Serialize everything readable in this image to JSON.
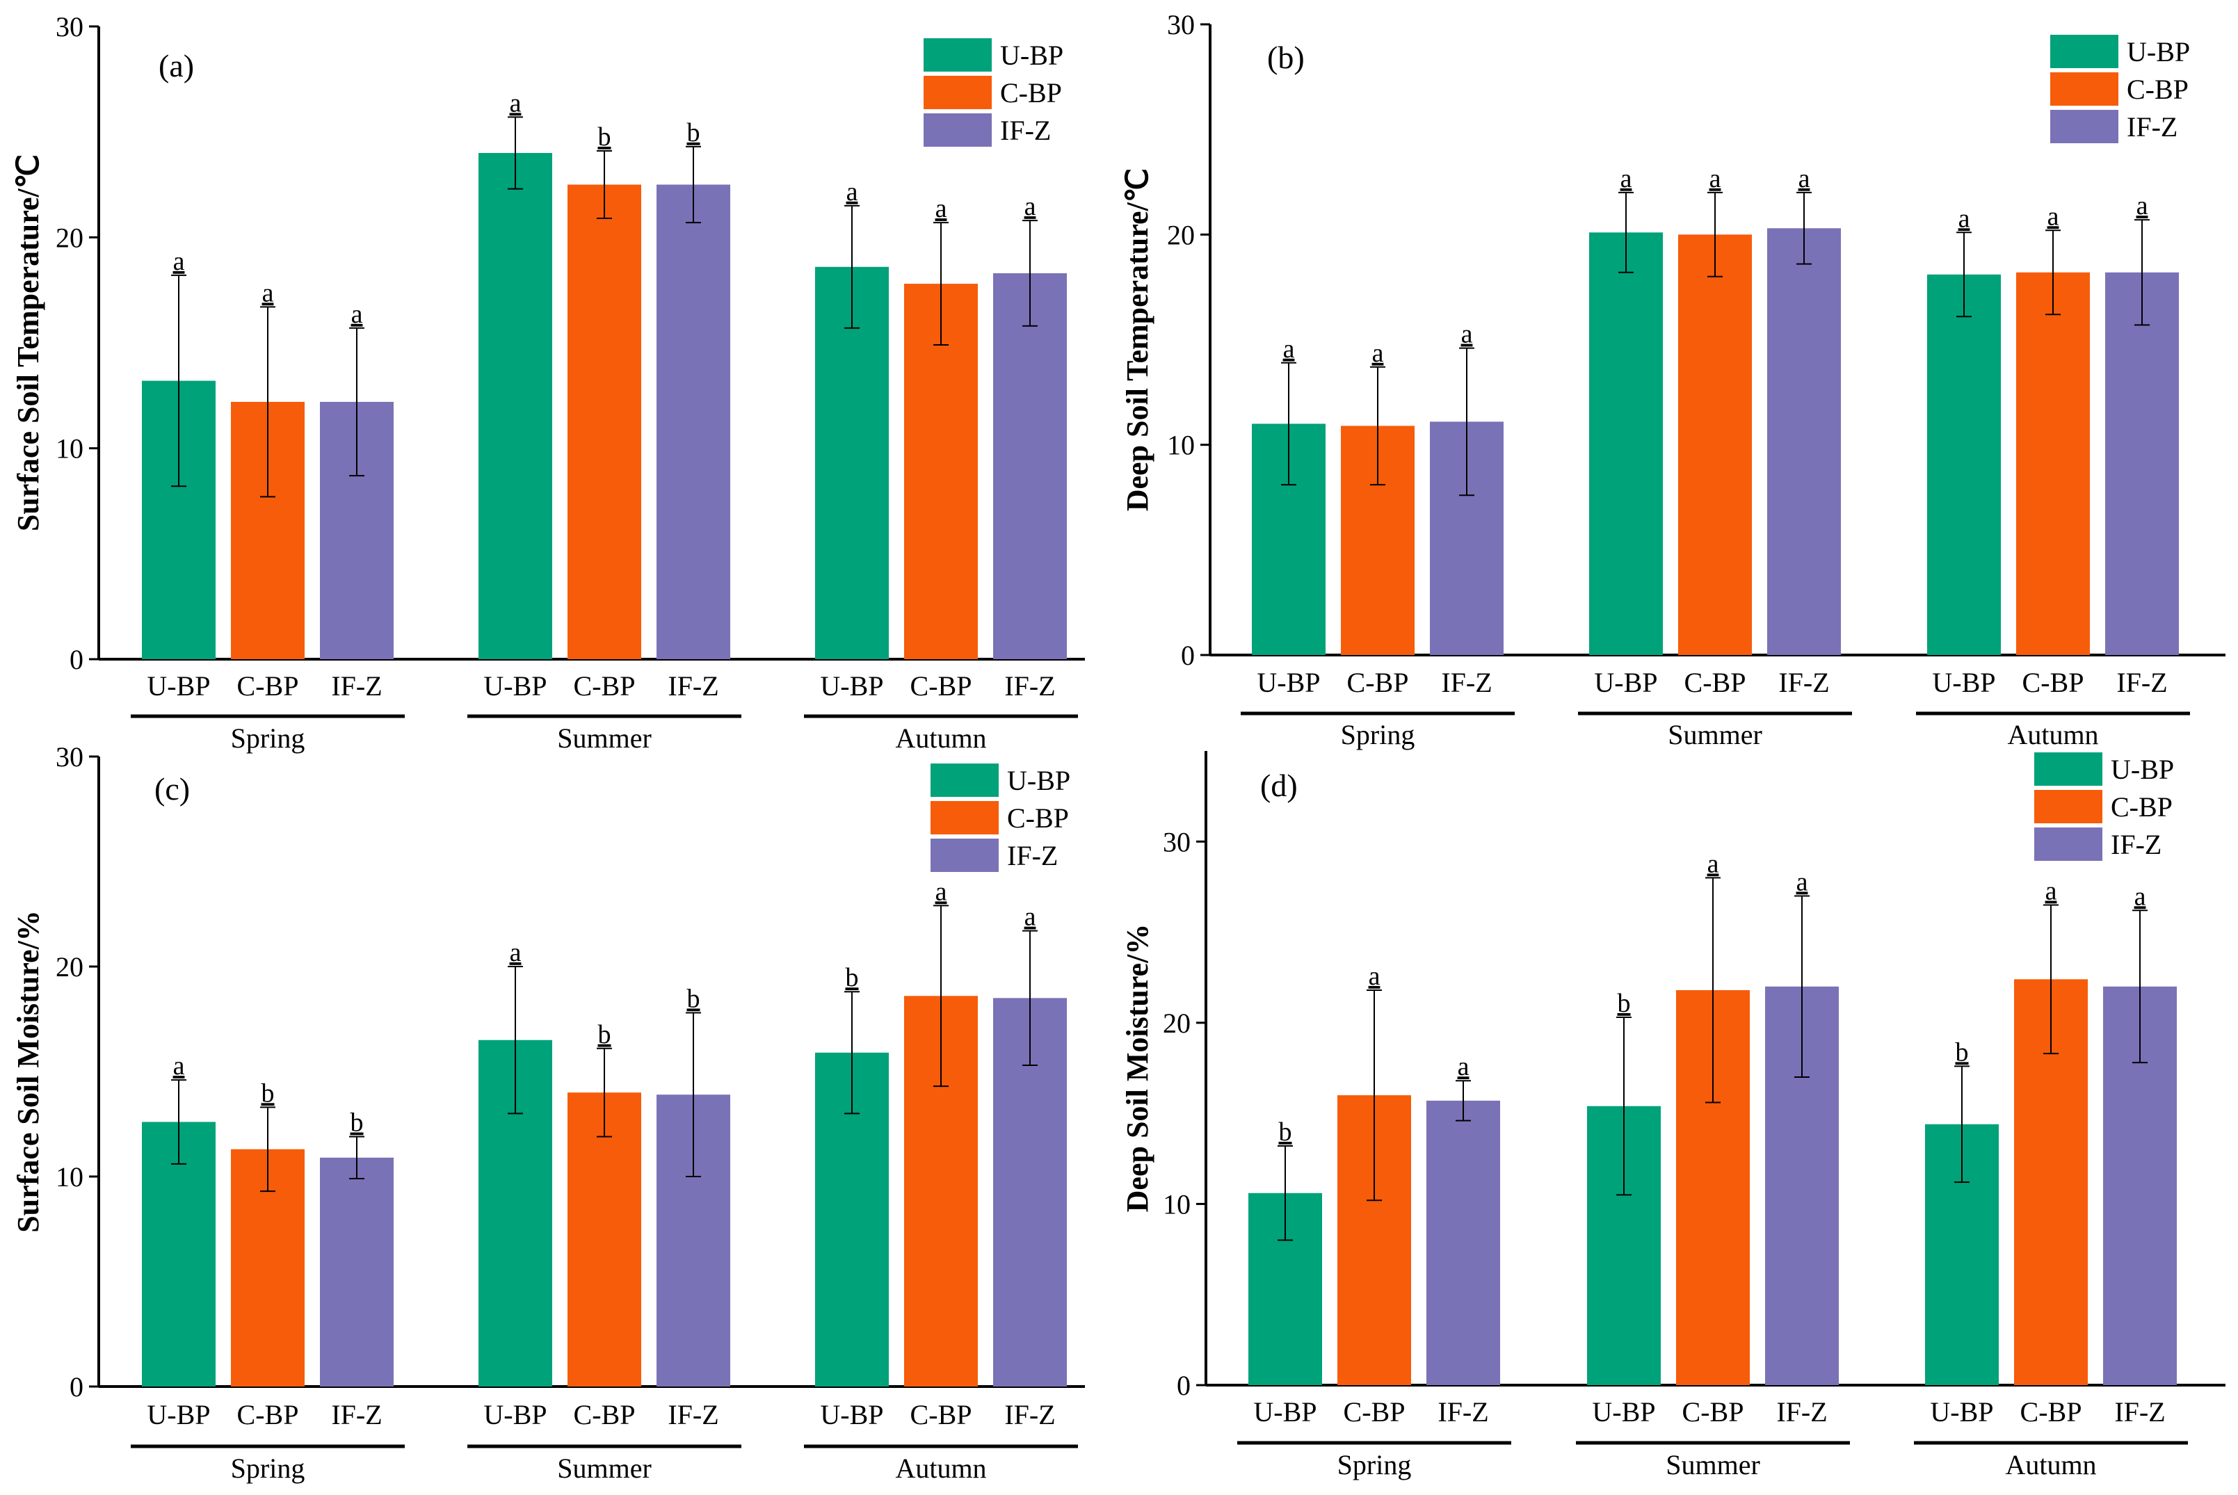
{
  "colors": {
    "U-BP": "#00A27A",
    "C-BP": "#F75C0A",
    "IF-Z": "#7A72B6"
  },
  "chart_data": [
    {
      "type": "bar",
      "panel_label": "(a)",
      "ylabel": "Surface Soil Temperature/℃",
      "ylim": [
        0,
        30
      ],
      "yticks": [
        "0",
        "10",
        "20",
        "30"
      ],
      "seasons": [
        "Spring",
        "Summer",
        "Autumn"
      ],
      "categories": [
        "U-BP",
        "C-BP",
        "IF-Z"
      ],
      "legend": [
        "U-BP",
        "C-BP",
        "IF-Z"
      ],
      "series": [
        {
          "name": "U-BP",
          "values": [
            13.2,
            24.0,
            18.6
          ],
          "errors": [
            5.0,
            1.7,
            2.9
          ],
          "letters": [
            "a",
            "a",
            "a"
          ]
        },
        {
          "name": "C-BP",
          "values": [
            12.2,
            22.5,
            17.8
          ],
          "errors": [
            4.5,
            1.6,
            2.9
          ],
          "letters": [
            "a",
            "b",
            "a"
          ]
        },
        {
          "name": "IF-Z",
          "values": [
            12.2,
            22.5,
            18.3
          ],
          "errors": [
            3.5,
            1.8,
            2.5
          ],
          "letters": [
            "a",
            "b",
            "a"
          ]
        }
      ]
    },
    {
      "type": "bar",
      "panel_label": "(b)",
      "ylabel": "Deep Soil Temperature/℃",
      "ylim": [
        0,
        30
      ],
      "yticks": [
        "0",
        "10",
        "20",
        "30"
      ],
      "seasons": [
        "Spring",
        "Summer",
        "Autumn"
      ],
      "categories": [
        "U-BP",
        "C-BP",
        "IF-Z"
      ],
      "legend": [
        "U-BP",
        "C-BP",
        "IF-Z"
      ],
      "series": [
        {
          "name": "U-BP",
          "values": [
            11.0,
            20.1,
            18.1
          ],
          "errors": [
            2.9,
            1.9,
            2.0
          ],
          "letters": [
            "a",
            "a",
            "a"
          ]
        },
        {
          "name": "C-BP",
          "values": [
            10.9,
            20.0,
            18.2
          ],
          "errors": [
            2.8,
            2.0,
            2.0
          ],
          "letters": [
            "a",
            "a",
            "a"
          ]
        },
        {
          "name": "IF-Z",
          "values": [
            11.1,
            20.3,
            18.2
          ],
          "errors": [
            3.5,
            1.7,
            2.5
          ],
          "letters": [
            "a",
            "a",
            "a"
          ]
        }
      ]
    },
    {
      "type": "bar",
      "panel_label": "(c)",
      "ylabel": "Surface Soil Moisture/%",
      "ylim": [
        0,
        30
      ],
      "yticks": [
        "0",
        "10",
        "20",
        "30"
      ],
      "seasons": [
        "Spring",
        "Summer",
        "Autumn"
      ],
      "categories": [
        "U-BP",
        "C-BP",
        "IF-Z"
      ],
      "legend": [
        "U-BP",
        "C-BP",
        "IF-Z"
      ],
      "series": [
        {
          "name": "U-BP",
          "values": [
            12.6,
            16.5,
            15.9
          ],
          "errors": [
            2.0,
            3.5,
            2.9
          ],
          "letters": [
            "a",
            "a",
            "b"
          ]
        },
        {
          "name": "C-BP",
          "values": [
            11.3,
            14.0,
            18.6
          ],
          "errors": [
            2.0,
            2.1,
            4.3
          ],
          "letters": [
            "b",
            "b",
            "a"
          ]
        },
        {
          "name": "IF-Z",
          "values": [
            10.9,
            13.9,
            18.5
          ],
          "errors": [
            1.0,
            3.9,
            3.2
          ],
          "letters": [
            "b",
            "b",
            "a"
          ]
        }
      ]
    },
    {
      "type": "bar",
      "panel_label": "(d)",
      "ylabel": "Deep Soil Moisture/%",
      "ylim": [
        0,
        35
      ],
      "yticks": [
        "0",
        "10",
        "20",
        "30"
      ],
      "seasons": [
        "Spring",
        "Summer",
        "Autumn"
      ],
      "categories": [
        "U-BP",
        "C-BP",
        "IF-Z"
      ],
      "legend": [
        "U-BP",
        "C-BP",
        "IF-Z"
      ],
      "series": [
        {
          "name": "U-BP",
          "values": [
            10.6,
            15.4,
            14.4
          ],
          "errors": [
            2.6,
            4.9,
            3.2
          ],
          "letters": [
            "b",
            "b",
            "b"
          ]
        },
        {
          "name": "C-BP",
          "values": [
            16.0,
            21.8,
            22.4
          ],
          "errors": [
            5.8,
            6.2,
            4.1
          ],
          "letters": [
            "a",
            "a",
            "a"
          ]
        },
        {
          "name": "IF-Z",
          "values": [
            15.7,
            22.0,
            22.0
          ],
          "errors": [
            1.1,
            5.0,
            4.2
          ],
          "letters": [
            "a",
            "a",
            "a"
          ]
        }
      ]
    }
  ]
}
